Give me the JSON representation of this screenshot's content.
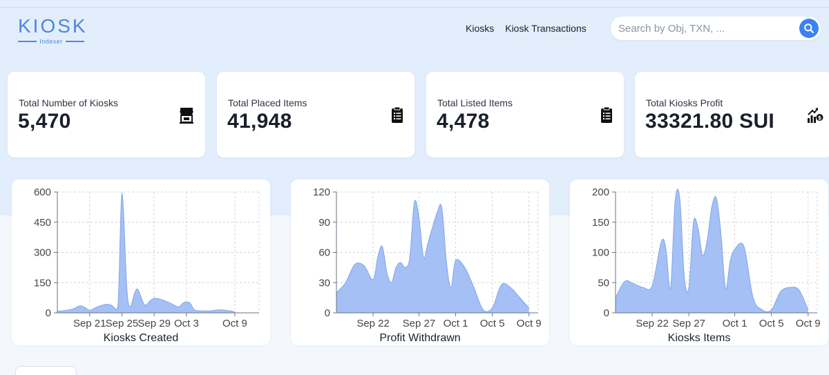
{
  "header": {
    "logo_main": "KIOSK",
    "logo_sub": "Indexer",
    "nav": [
      {
        "label": "Kiosks"
      },
      {
        "label": "Kiosk Transactions"
      }
    ],
    "search": {
      "placeholder": "Search by Obj, TXN, ..."
    }
  },
  "stats": [
    {
      "label": "Total Number of Kiosks",
      "value": "5,470",
      "icon": "kiosk-store-icon"
    },
    {
      "label": "Total Placed Items",
      "value": "41,948",
      "icon": "clipboard-list-icon"
    },
    {
      "label": "Total Listed Items",
      "value": "4,478",
      "icon": "clipboard-list-icon"
    },
    {
      "label": "Total Kiosks Profit",
      "value": "33321.80 SUI",
      "icon": "profit-chart-icon"
    }
  ],
  "colors": {
    "accent": "#3b82f6",
    "logo": "#4f86dc",
    "area_fill": "#a5c0f5",
    "area_stroke": "#7fa3ea",
    "band": "#e3eefc"
  },
  "chart_data": [
    {
      "type": "area",
      "title": "Kiosks Created",
      "xlabel": "Kiosks Created",
      "ylabel": "",
      "ylim": [
        0,
        600
      ],
      "yticks": [
        0,
        150,
        300,
        450,
        600
      ],
      "x_range": [
        0,
        25
      ],
      "xticks": [
        {
          "x": 4,
          "label": "Sep 21"
        },
        {
          "x": 8,
          "label": "Sep 25"
        },
        {
          "x": 12,
          "label": "Sep 29"
        },
        {
          "x": 16,
          "label": "Oct 3"
        },
        {
          "x": 22,
          "label": "Oct 9"
        }
      ],
      "grid": true,
      "x": [
        0,
        1,
        2,
        2.8,
        3.5,
        4,
        5,
        6,
        6.7,
        7.5,
        8,
        8.6,
        9,
        9.6,
        10,
        10.8,
        11.5,
        12,
        13,
        14,
        15,
        15.7,
        16.4,
        17,
        18,
        19,
        20,
        21,
        22
      ],
      "values": [
        8,
        12,
        20,
        35,
        25,
        12,
        30,
        42,
        38,
        30,
        590,
        130,
        30,
        100,
        115,
        40,
        60,
        72,
        65,
        48,
        30,
        52,
        50,
        15,
        10,
        10,
        15,
        12,
        5
      ]
    },
    {
      "type": "area",
      "title": "Profit Withdrawn",
      "xlabel": "Profit Withdrawn",
      "ylabel": "",
      "ylim": [
        0,
        120
      ],
      "yticks": [
        0,
        30,
        60,
        90,
        120
      ],
      "x_range": [
        0,
        22
      ],
      "xticks": [
        {
          "x": 4,
          "label": "Sep 22"
        },
        {
          "x": 9,
          "label": "Sep 27"
        },
        {
          "x": 13,
          "label": "Oct 1"
        },
        {
          "x": 17,
          "label": "Oct 5"
        },
        {
          "x": 21,
          "label": "Oct 9"
        }
      ],
      "grid": true,
      "x": [
        0,
        1,
        2,
        3,
        4,
        4.5,
        5,
        5.5,
        6,
        6.5,
        7,
        7.5,
        8,
        8.5,
        9,
        9.5,
        10,
        11,
        11.5,
        12,
        12.5,
        13,
        14,
        15,
        16,
        17,
        18,
        19,
        20,
        21
      ],
      "values": [
        20,
        30,
        48,
        47,
        33,
        55,
        66,
        40,
        30,
        45,
        50,
        45,
        55,
        110,
        95,
        55,
        70,
        100,
        104,
        50,
        25,
        52,
        45,
        25,
        3,
        5,
        28,
        25,
        15,
        5
      ]
    },
    {
      "type": "area",
      "title": "Kiosks Items",
      "xlabel": "Kiosks Items",
      "ylabel": "",
      "ylim": [
        0,
        200
      ],
      "yticks": [
        0,
        50,
        100,
        150,
        200
      ],
      "x_range": [
        0,
        22
      ],
      "xticks": [
        {
          "x": 4,
          "label": "Sep 22"
        },
        {
          "x": 8,
          "label": "Sep 27"
        },
        {
          "x": 13,
          "label": "Oct 1"
        },
        {
          "x": 17,
          "label": "Oct 5"
        },
        {
          "x": 21,
          "label": "Oct 9"
        }
      ],
      "grid": true,
      "x": [
        0,
        1,
        2,
        3,
        4,
        5,
        5.5,
        6,
        6.5,
        7,
        7.5,
        8,
        8.5,
        9,
        9.5,
        10,
        10.5,
        11,
        11.5,
        12,
        12.5,
        13,
        14,
        15,
        16,
        17,
        18,
        19,
        20,
        21
      ],
      "values": [
        25,
        52,
        48,
        42,
        45,
        118,
        105,
        40,
        185,
        190,
        60,
        42,
        150,
        140,
        95,
        120,
        175,
        190,
        130,
        40,
        85,
        105,
        110,
        25,
        5,
        5,
        35,
        42,
        38,
        5
      ]
    }
  ]
}
